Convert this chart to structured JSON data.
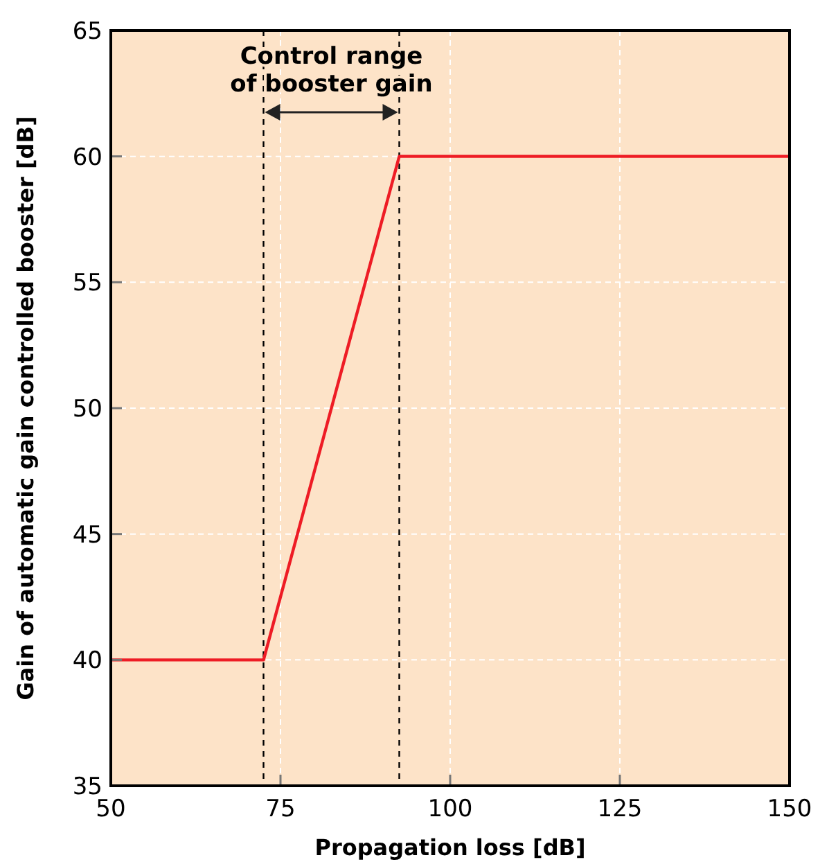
{
  "chart_data": {
    "type": "line",
    "xlabel": "Propagation loss [dB]",
    "ylabel": "Gain of automatic gain controlled booster [dB]",
    "x": [
      50,
      72.5,
      92.5,
      150
    ],
    "series": [
      {
        "color": "#ee1c25",
        "values": [
          40,
          40,
          60,
          60
        ]
      }
    ],
    "xlim": [
      50,
      150
    ],
    "ylim": [
      35,
      65
    ],
    "xticks": [
      50,
      75,
      100,
      125,
      150
    ],
    "yticks": [
      35,
      40,
      45,
      50,
      55,
      60,
      65
    ],
    "grid": true,
    "marker": "none",
    "line_style": "solid",
    "ref_lines": [
      {
        "axis": "x",
        "value": 72.5,
        "color": "#000000",
        "line_style": "dashed"
      },
      {
        "axis": "x",
        "value": 92.5,
        "color": "#000000",
        "line_style": "dashed"
      }
    ],
    "annotations": [
      "Control range\nof booster gain"
    ]
  }
}
